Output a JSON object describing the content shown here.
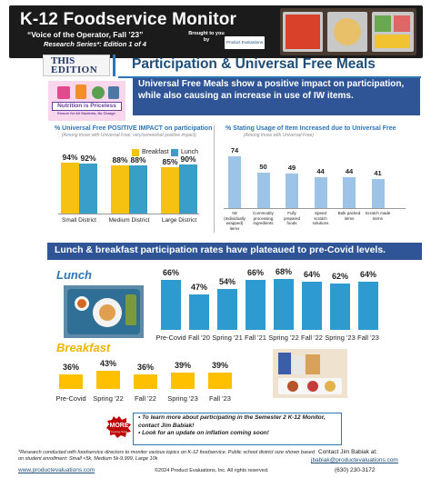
{
  "header": {
    "title": "K-12 Foodservice Monitor",
    "subtitle": "“Voice of the Operator, Fall ’23”",
    "series": "Research Series*: Edition 1 of 4",
    "brought_to_you_by": "Brought to you by",
    "logo_text": "Product Evaluations"
  },
  "edition": {
    "this": "THIS",
    "edition": "EDITION",
    "topic": "Participation & Universal Free Meals"
  },
  "intro": {
    "image_text_1": "Nutrition is Priceless",
    "image_text_2": "Ensure for All Students, No Charge.",
    "text": "Universal Free Meals show a positive impact on participation, while also causing an increase in use of IW items."
  },
  "chart_data": [
    {
      "type": "bar",
      "title": "% Universal Free POSITIVE IMPACT on participation",
      "subtitle": "(Among those with Universal Free; very/somewhat positive impact)",
      "categories": [
        "Small District",
        "Medium District",
        "Large District"
      ],
      "series": [
        {
          "name": "Breakfast",
          "values": [
            94,
            88,
            85
          ],
          "color": "#f5c211"
        },
        {
          "name": "Lunch",
          "values": [
            92,
            88,
            90
          ],
          "color": "#3a9fc8"
        }
      ],
      "legend_position": "top-right",
      "ylim": [
        0,
        100
      ]
    },
    {
      "type": "bar",
      "title": "% Stating Usage of Item Increased due to Universal Free",
      "subtitle": "(Among those with Universal Free)",
      "categories": [
        "IW (Individually wrapped) items",
        "Commodity processing ingredients",
        "Fully prepared foods",
        "Speed scratch solutions",
        "Bulk packed items",
        "Scratch made items"
      ],
      "values": [
        74,
        50,
        49,
        44,
        44,
        41
      ],
      "color": "#9dc3e6",
      "ylim": [
        0,
        80
      ]
    },
    {
      "type": "bar",
      "title": "Lunch",
      "categories": [
        "Pre-Covid",
        "Fall '20",
        "Spring '21",
        "Fall '21",
        "Spring '22",
        "Fall '22",
        "Spring '23",
        "Fall '23"
      ],
      "values": [
        66,
        47,
        54,
        66,
        68,
        64,
        62,
        64
      ],
      "color": "#2e9bd0",
      "ylim": [
        0,
        70
      ]
    },
    {
      "type": "bar",
      "title": "Breakfast",
      "categories": [
        "Pre-Covid",
        "Spring '22",
        "Fall '22",
        "Spring '23",
        "Fall '23"
      ],
      "values": [
        36,
        43,
        36,
        39,
        39
      ],
      "color": "#ffc000",
      "ylim": [
        0,
        70
      ]
    }
  ],
  "banner": {
    "text": "Lunch & breakfast participation rates have plateaued to pre-Covid levels."
  },
  "callout": {
    "badge": "MORE",
    "badge_sub": "Coming Soon",
    "line1": "•  To learn more about participating in the Semester 2 K-12 Monitor, contact Jim Babiak!",
    "line2": "•  Look for an update on inflation coming soon!"
  },
  "footer": {
    "note": "*Research conducted with foodservice directors to monitor various topics on K-12 foodservice. Public school district size shown based on student enrollment: Small <5k, Medium 5k-9,999, Large 10k",
    "url": "www.productevaluations.com",
    "copyright": "©2024 Product Evaluations, Inc. All rights reserved.",
    "contact_label": "Contact Jim Babiak at:",
    "contact_email": "jbabiak@productevaluations.com",
    "contact_phone": "(630) 230-3172"
  }
}
